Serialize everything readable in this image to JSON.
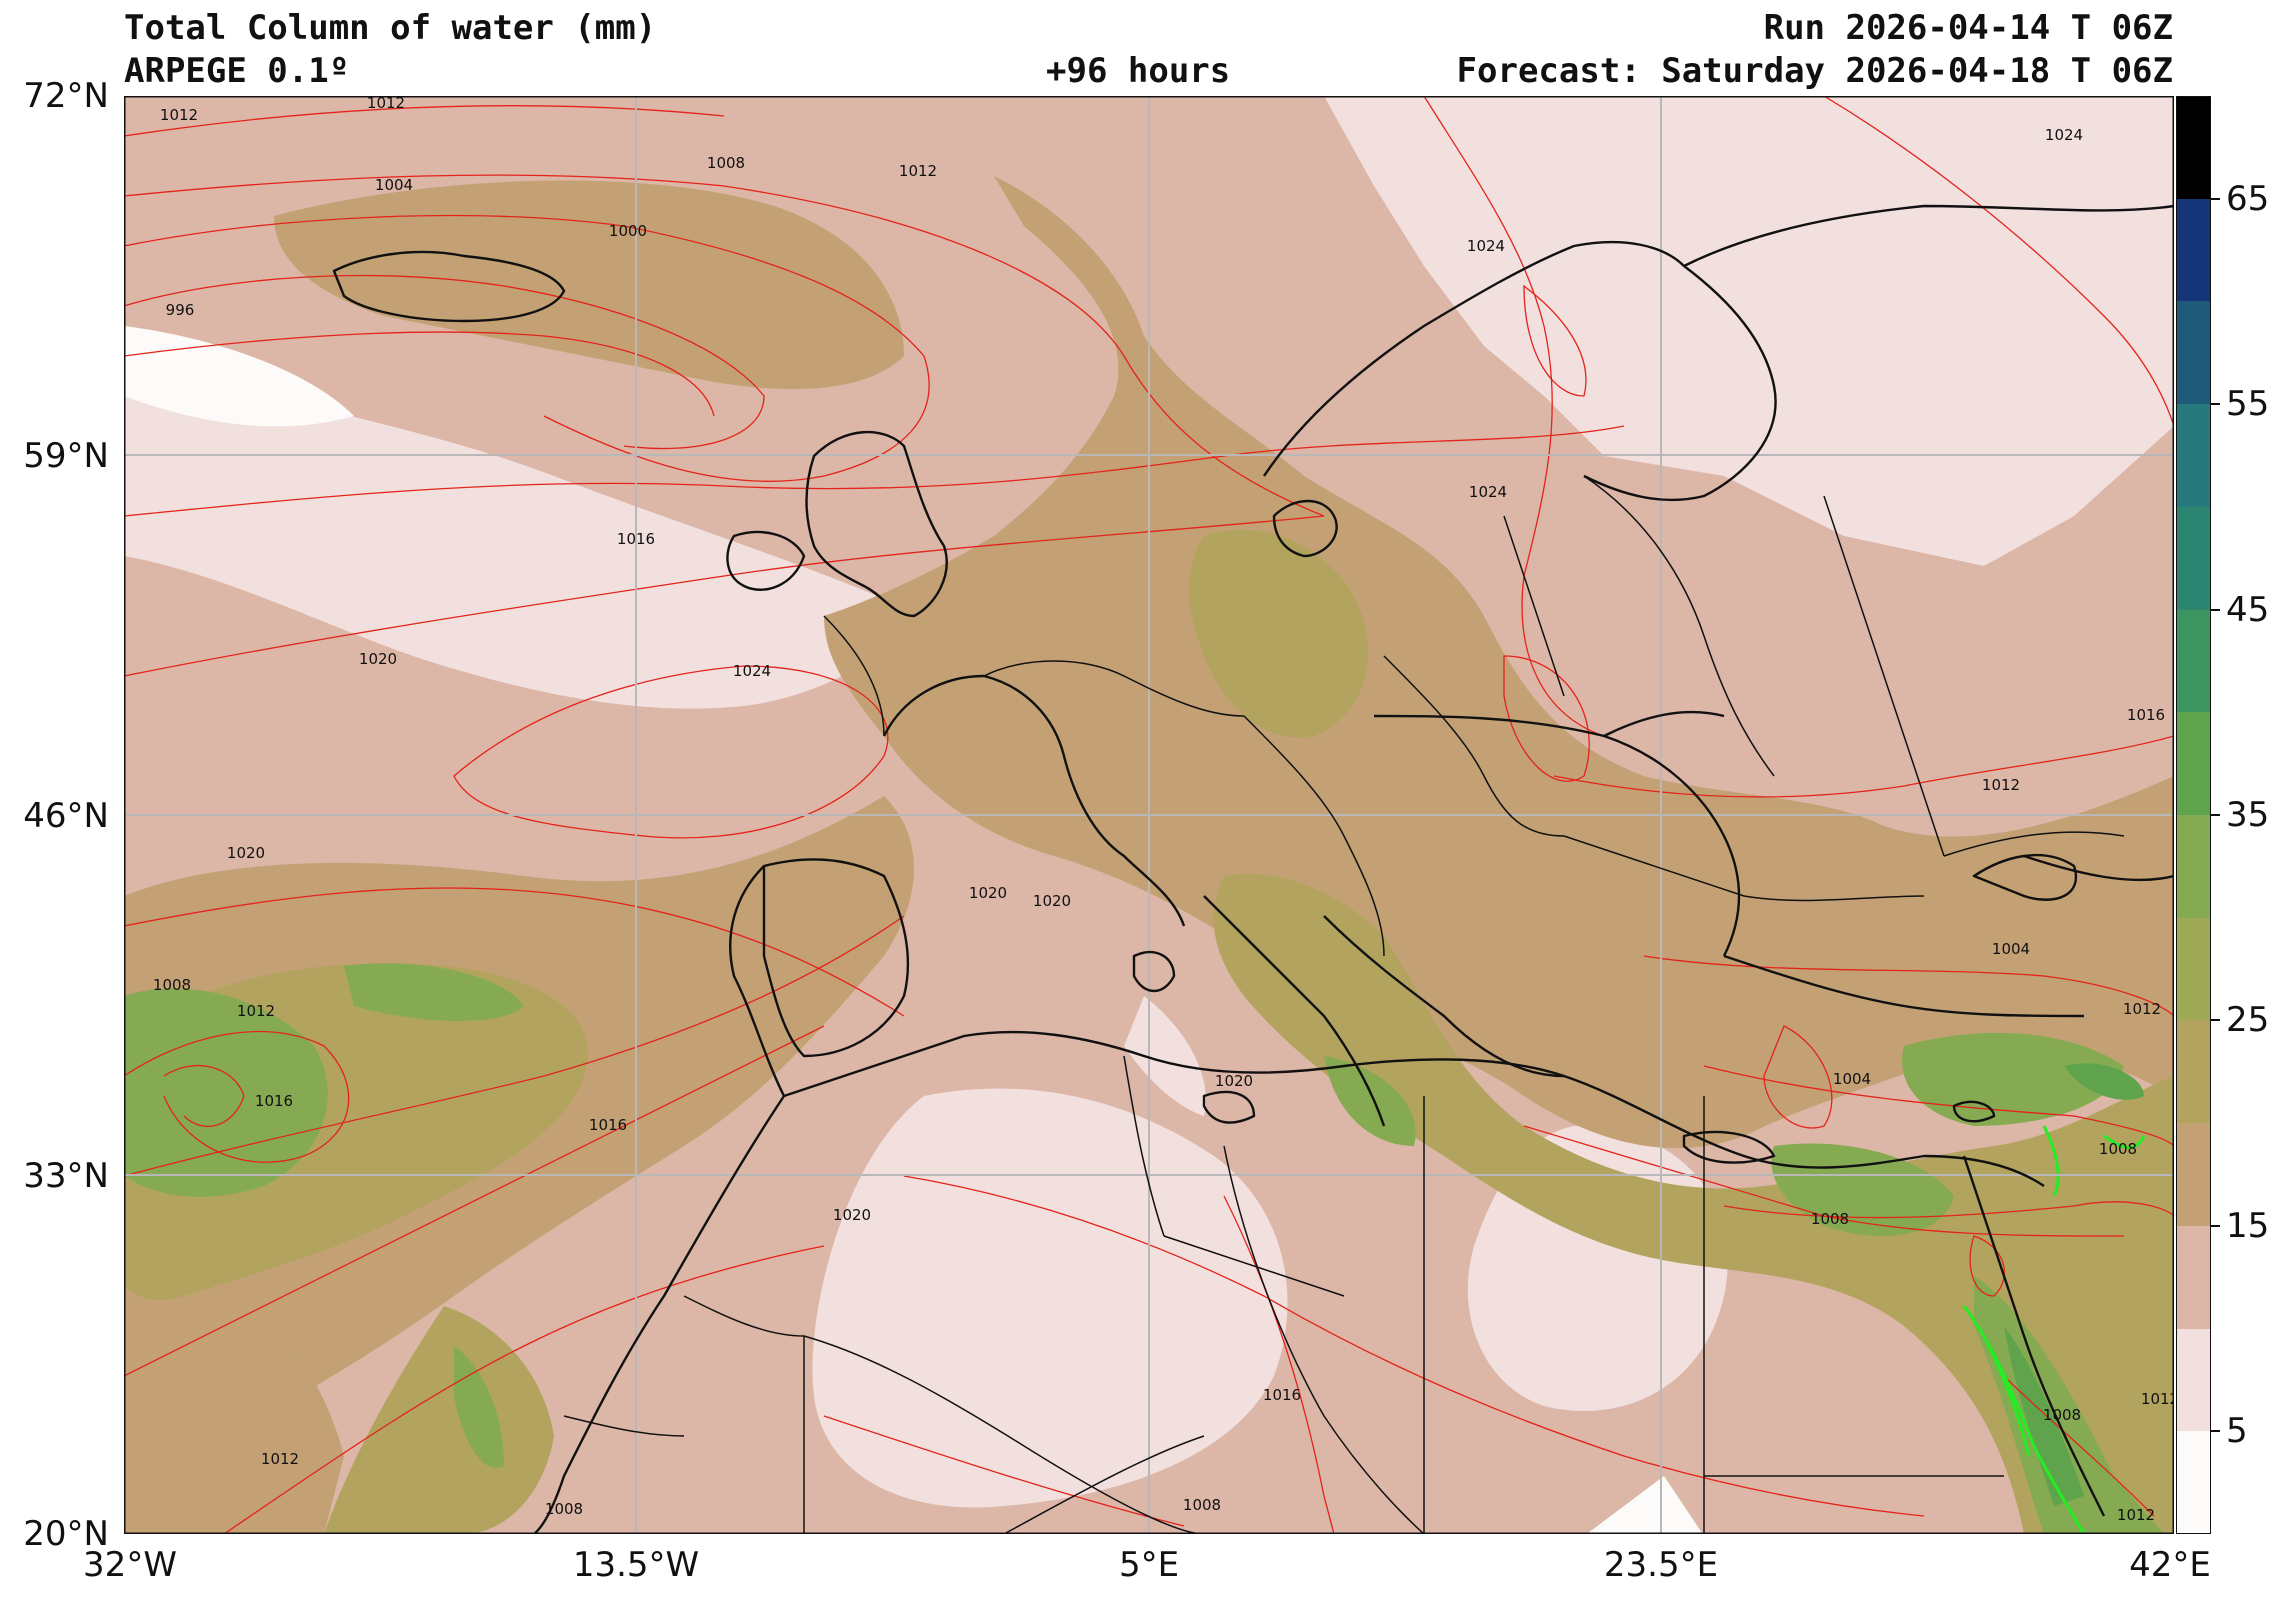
{
  "header": {
    "title_left_1": "Total Column of water (mm)",
    "title_left_2": "ARPEGE 0.1º",
    "title_center": "+96 hours",
    "title_right_1": "Run 2026-04-14 T 06Z",
    "title_right_2": "Forecast: Saturday 2026-04-18 T 06Z"
  },
  "axes": {
    "lat_labels": [
      "72°N",
      "59°N",
      "46°N",
      "33°N",
      "20°N"
    ],
    "lon_labels": [
      "32°W",
      "13.5°W",
      "5°E",
      "23.5°E",
      "42°E"
    ],
    "lat_range": [
      20,
      72
    ],
    "lon_range": [
      -32,
      42
    ]
  },
  "colorbar": {
    "labels": [
      "65",
      "55",
      "45",
      "35",
      "25",
      "15",
      "5"
    ],
    "bins": [
      0,
      5,
      10,
      15,
      20,
      25,
      30,
      35,
      40,
      45,
      50,
      55,
      60,
      65,
      70
    ],
    "colors": [
      "#fdfafa",
      "#f2e0de",
      "#dcb6a6",
      "#c3a174",
      "#b2a45f",
      "#9eaa56",
      "#86aa52",
      "#5fa44c",
      "#3c9560",
      "#2b8570",
      "#267a7c",
      "#205a7a",
      "#163478",
      "#000000"
    ]
  },
  "isobars": {
    "labels": [
      "1012",
      "1012",
      "1004",
      "1008",
      "1012",
      "1000",
      "996",
      "1024",
      "1024",
      "1024",
      "1016",
      "1020",
      "1024",
      "1020",
      "1020",
      "1020",
      "1008",
      "1012",
      "1016",
      "1016",
      "1012",
      "1020",
      "1020",
      "1016",
      "1008",
      "1008",
      "1012",
      "1004",
      "1012",
      "1004",
      "1008",
      "1008",
      "1012",
      "1008",
      "1012",
      "1016"
    ]
  }
}
